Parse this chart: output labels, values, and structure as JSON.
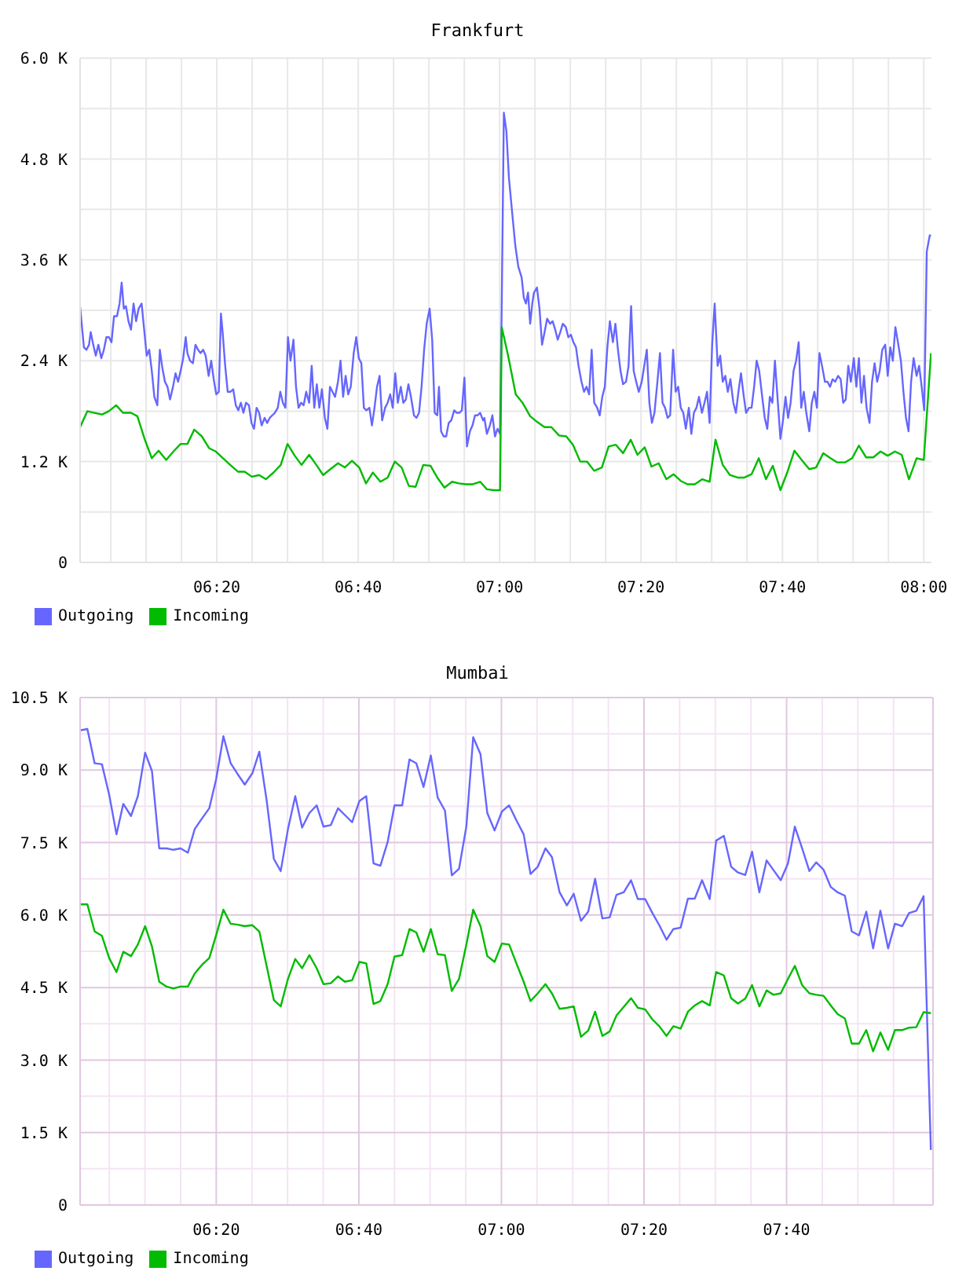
{
  "chart_data": [
    {
      "type": "line",
      "title": "Frankfurt",
      "series": [
        {
          "name": "Outgoing",
          "color": "#6666ff",
          "x": [
            6.011,
            6.02,
            6.026,
            6.032,
            6.036,
            6.042,
            6.048,
            6.054,
            6.061,
            6.067,
            6.073,
            6.079,
            6.085,
            6.091,
            6.098,
            6.104,
            6.109,
            6.114,
            6.119,
            6.125,
            6.131,
            6.137,
            6.143,
            6.149,
            6.156,
            6.162,
            6.168,
            6.174,
            6.18,
            6.186,
            6.193,
            6.199,
            6.205,
            6.211,
            6.217,
            6.223,
            6.23,
            6.236,
            6.242,
            6.248,
            6.254,
            6.26,
            6.264,
            6.27,
            6.277,
            6.283,
            6.289,
            6.295,
            6.301,
            6.307,
            6.314,
            6.32,
            6.326,
            6.332,
            6.338,
            6.343,
            6.347,
            6.353,
            6.359,
            6.365,
            6.372,
            6.378,
            6.384,
            6.39,
            6.396,
            6.402,
            6.409,
            6.415,
            6.421,
            6.427,
            6.433,
            6.439,
            6.446,
            6.452,
            6.458,
            6.464,
            6.47,
            6.477,
            6.483,
            6.489,
            6.495,
            6.501,
            6.507,
            6.514,
            6.52,
            6.526,
            6.532,
            6.538,
            6.544,
            6.551,
            6.557,
            6.563,
            6.569,
            6.575,
            6.581,
            6.588,
            6.594,
            6.6,
            6.606,
            6.612,
            6.619,
            6.625,
            6.631,
            6.637,
            6.643,
            6.649,
            6.656,
            6.662,
            6.668,
            6.674,
            6.68,
            6.686,
            6.693,
            6.699,
            6.705,
            6.711,
            6.717,
            6.723,
            6.73,
            6.736,
            6.742,
            6.748,
            6.754,
            6.76,
            6.767,
            6.773,
            6.779,
            6.785,
            6.791,
            6.798,
            6.804,
            6.81,
            6.816,
            6.822,
            6.828,
            6.835,
            6.841,
            6.847,
            6.853,
            6.857,
            6.862,
            6.868,
            6.874,
            6.88,
            6.886,
            6.893,
            6.899,
            6.905,
            6.911,
            6.917,
            6.923,
            6.93,
            6.936,
            6.942,
            6.948,
            6.954,
            6.961,
            6.964,
            6.97,
            6.977,
            6.983,
            6.989,
            6.995,
            7.001,
            7.005,
            7.01,
            7.016,
            7.022,
            7.03,
            7.037,
            7.044,
            7.052,
            7.057,
            7.062,
            7.067,
            7.072,
            7.077,
            7.081,
            7.088,
            7.094,
            7.1,
            7.106,
            7.112,
            7.119,
            7.125,
            7.131,
            7.137,
            7.143,
            7.149,
            7.156,
            7.162,
            7.168,
            7.174,
            7.18,
            7.186,
            7.193,
            7.199,
            7.205,
            7.211,
            7.217,
            7.223,
            7.23,
            7.236,
            7.242,
            7.248,
            7.254,
            7.26,
            7.267,
            7.273,
            7.279,
            7.285,
            7.291,
            7.298,
            7.304,
            7.31,
            7.316,
            7.322,
            7.328,
            7.335,
            7.341,
            7.347,
            7.353,
            7.359,
            7.365,
            7.372,
            7.378,
            7.384,
            7.39,
            7.396,
            7.402,
            7.409,
            7.415,
            7.421,
            7.427,
            7.433,
            7.439,
            7.446,
            7.452,
            7.458,
            7.464,
            7.47,
            7.477,
            7.483,
            7.489,
            7.495,
            7.501,
            7.507,
            7.514,
            7.52,
            7.526,
            7.532,
            7.538,
            7.544,
            7.551,
            7.557,
            7.563,
            7.569,
            7.575,
            7.581,
            7.588,
            7.594,
            7.6,
            7.606,
            7.612,
            7.619,
            7.625,
            7.631,
            7.637,
            7.643,
            7.649,
            7.656,
            7.662,
            7.668,
            7.674,
            7.68,
            7.686,
            7.693,
            7.699,
            7.705,
            7.711,
            7.717,
            7.723,
            7.73,
            7.736,
            7.742,
            7.748,
            7.754,
            7.76,
            7.767,
            7.773,
            7.779,
            7.785,
            7.791,
            7.798,
            7.804,
            7.81,
            7.816,
            7.822,
            7.828,
            7.835,
            7.841,
            7.847,
            7.853,
            7.859,
            7.865,
            7.872,
            7.878,
            7.884,
            7.89,
            7.896,
            7.902,
            7.909,
            7.915,
            7.921,
            7.927,
            7.933,
            7.939,
            7.946,
            7.952,
            7.958,
            7.964,
            7.97,
            7.976,
            7.983,
            7.989,
            7.995,
            8.001,
            8.007,
            8.014,
            8.017
          ],
          "values": [
            3040,
            2560,
            2530,
            2590,
            2740,
            2590,
            2460,
            2590,
            2430,
            2530,
            2680,
            2680,
            2620,
            2930,
            2930,
            3080,
            3330,
            3020,
            3050,
            2870,
            2770,
            3080,
            2870,
            3020,
            3080,
            2770,
            2460,
            2530,
            2280,
            1970,
            1870,
            2530,
            2310,
            2150,
            2090,
            1940,
            2090,
            2250,
            2150,
            2280,
            2430,
            2680,
            2490,
            2400,
            2370,
            2590,
            2530,
            2490,
            2530,
            2460,
            2220,
            2400,
            2180,
            2000,
            2030,
            2960,
            2740,
            2340,
            2030,
            2030,
            2060,
            1870,
            1810,
            1900,
            1780,
            1900,
            1870,
            1660,
            1590,
            1840,
            1780,
            1630,
            1720,
            1660,
            1720,
            1750,
            1780,
            1840,
            2030,
            1900,
            1840,
            2680,
            2400,
            2650,
            2090,
            1840,
            1900,
            1870,
            2030,
            1900,
            2340,
            1840,
            2120,
            1840,
            2060,
            1720,
            1590,
            2090,
            2030,
            1970,
            2150,
            2400,
            1970,
            2220,
            2000,
            2090,
            2490,
            2680,
            2430,
            2370,
            1840,
            1810,
            1840,
            1630,
            1840,
            2090,
            2220,
            1690,
            1840,
            1900,
            2000,
            1840,
            2250,
            1900,
            2090,
            1900,
            1940,
            2120,
            1970,
            1750,
            1720,
            1780,
            2090,
            2530,
            2840,
            3020,
            2650,
            1780,
            1750,
            2090,
            1560,
            1500,
            1500,
            1660,
            1690,
            1810,
            1780,
            1780,
            1810,
            2200,
            1380,
            1560,
            1630,
            1750,
            1750,
            1780,
            1690,
            1720,
            1530,
            1630,
            1750,
            1500,
            1590,
            1530,
            3080,
            5350,
            5130,
            4570,
            4140,
            3770,
            3520,
            3390,
            3150,
            3080,
            3210,
            2840,
            3080,
            3210,
            3270,
            3020,
            2590,
            2740,
            2900,
            2840,
            2870,
            2770,
            2650,
            2740,
            2840,
            2800,
            2680,
            2710,
            2620,
            2560,
            2340,
            2150,
            2030,
            2090,
            2000,
            2530,
            1900,
            1840,
            1750,
            1970,
            2090,
            2560,
            2870,
            2620,
            2840,
            2530,
            2280,
            2120,
            2150,
            2340,
            3050,
            2280,
            2150,
            2030,
            2150,
            2340,
            2530,
            1900,
            1660,
            1780,
            2150,
            2490,
            1900,
            1840,
            1720,
            1750,
            2530,
            2030,
            2090,
            1840,
            1780,
            1590,
            1840,
            1530,
            1780,
            1840,
            1970,
            1780,
            1900,
            2030,
            1660,
            2590,
            3080,
            2340,
            2460,
            2150,
            2220,
            2030,
            2180,
            1900,
            1780,
            2030,
            2250,
            2000,
            1780,
            1840,
            1840,
            2090,
            2400,
            2280,
            1970,
            1720,
            1590,
            1970,
            1900,
            2400,
            1900,
            1470,
            1690,
            1970,
            1720,
            1900,
            2280,
            2400,
            2620,
            1840,
            2030,
            1780,
            1560,
            1900,
            2030,
            1840,
            2490,
            2340,
            2150,
            2150,
            2090,
            2180,
            2150,
            2220,
            2180,
            1900,
            1940,
            2340,
            2150,
            2430,
            2090,
            2430,
            1900,
            2220,
            1840,
            1660,
            2150,
            2370,
            2150,
            2280,
            2530,
            2590,
            2220,
            2560,
            2400,
            2800,
            2620,
            2400,
            2030,
            1720,
            1560,
            2150,
            2430,
            2220,
            2340,
            2090,
            1810,
            3700,
            3890,
            3890
          ]
        },
        {
          "name": "Incoming",
          "color": "#00bb00",
          "x": [
            6.011,
            6.028,
            6.044,
            6.063,
            6.079,
            6.096,
            6.112,
            6.131,
            6.146,
            6.163,
            6.18,
            6.196,
            6.214,
            6.231,
            6.248,
            6.264,
            6.28,
            6.298,
            6.315,
            6.331,
            6.348,
            6.365,
            6.383,
            6.399,
            6.416,
            6.433,
            6.449,
            6.467,
            6.484,
            6.5,
            6.517,
            6.533,
            6.551,
            6.568,
            6.584,
            6.601,
            6.619,
            6.635,
            6.652,
            6.669,
            6.685,
            6.701,
            6.719,
            6.736,
            6.753,
            6.769,
            6.786,
            6.802,
            6.82,
            6.837,
            6.853,
            6.87,
            6.888,
            6.904,
            6.921,
            6.937,
            6.954,
            6.97,
            6.986,
            7.001,
            7.005,
            7.02,
            7.038,
            7.054,
            7.072,
            7.089,
            7.106,
            7.122,
            7.14,
            7.157,
            7.173,
            7.19,
            7.206,
            7.223,
            7.241,
            7.257,
            7.274,
            7.291,
            7.309,
            7.325,
            7.342,
            7.358,
            7.375,
            7.393,
            7.41,
            7.427,
            7.443,
            7.46,
            7.478,
            7.495,
            7.509,
            7.526,
            7.543,
            7.561,
            7.577,
            7.594,
            7.611,
            7.628,
            7.644,
            7.662,
            7.678,
            7.695,
            7.712,
            7.73,
            7.746,
            7.763,
            7.78,
            7.796,
            7.814,
            7.831,
            7.847,
            7.864,
            7.881,
            7.898,
            7.915,
            7.932,
            7.948,
            7.965,
            7.983,
            8.0,
            8.017
          ],
          "values": [
            1610,
            1800,
            1780,
            1760,
            1800,
            1870,
            1780,
            1780,
            1740,
            1470,
            1240,
            1330,
            1220,
            1320,
            1410,
            1410,
            1580,
            1500,
            1360,
            1320,
            1240,
            1160,
            1080,
            1080,
            1020,
            1040,
            990,
            1070,
            1160,
            1410,
            1270,
            1160,
            1280,
            1160,
            1040,
            1110,
            1180,
            1130,
            1210,
            1130,
            940,
            1070,
            960,
            1010,
            1200,
            1130,
            910,
            900,
            1160,
            1150,
            1010,
            890,
            960,
            940,
            930,
            930,
            960,
            870,
            860,
            860,
            2800,
            2460,
            2000,
            1900,
            1740,
            1670,
            1610,
            1610,
            1510,
            1500,
            1400,
            1200,
            1200,
            1090,
            1130,
            1380,
            1400,
            1300,
            1460,
            1280,
            1370,
            1140,
            1180,
            990,
            1050,
            970,
            930,
            930,
            990,
            960,
            1460,
            1160,
            1040,
            1010,
            1010,
            1050,
            1240,
            990,
            1150,
            860,
            1070,
            1330,
            1220,
            1110,
            1130,
            1300,
            1240,
            1190,
            1190,
            1240,
            1390,
            1250,
            1250,
            1320,
            1270,
            1320,
            1280,
            990,
            1240,
            1220,
            2490
          ]
        }
      ],
      "xlim": [
        6.011,
        8.018
      ],
      "xticks": [
        {
          "value": 6.0833,
          "label": null
        },
        {
          "value": 6.1667,
          "label": null
        },
        {
          "value": 6.25,
          "label": null
        },
        {
          "value": 6.3333,
          "label": "06:20"
        },
        {
          "value": 6.4167,
          "label": null
        },
        {
          "value": 6.5,
          "label": null
        },
        {
          "value": 6.5833,
          "label": null
        },
        {
          "value": 6.6667,
          "label": "06:40"
        },
        {
          "value": 6.75,
          "label": null
        },
        {
          "value": 6.8333,
          "label": null
        },
        {
          "value": 6.9167,
          "label": null
        },
        {
          "value": 7,
          "label": "07:00"
        },
        {
          "value": 7.0833,
          "label": null
        },
        {
          "value": 7.1667,
          "label": null
        },
        {
          "value": 7.25,
          "label": null
        },
        {
          "value": 7.3333,
          "label": "07:20"
        },
        {
          "value": 7.4167,
          "label": null
        },
        {
          "value": 7.5,
          "label": null
        },
        {
          "value": 7.5833,
          "label": null
        },
        {
          "value": 7.6667,
          "label": "07:40"
        },
        {
          "value": 7.75,
          "label": null
        },
        {
          "value": 7.8333,
          "label": null
        },
        {
          "value": 7.9167,
          "label": null
        },
        {
          "value": 8,
          "label": "08:00"
        }
      ],
      "ylim": [
        0,
        6000
      ],
      "yticks": [
        0,
        {
          "value": 600,
          "label": null
        },
        {
          "value": 1200,
          "label": "1.2 K"
        },
        {
          "value": 1800,
          "label": null
        },
        {
          "value": 2400,
          "label": "2.4 K"
        },
        {
          "value": 3000,
          "label": null
        },
        {
          "value": 3600,
          "label": "3.6 K"
        },
        {
          "value": 4200,
          "label": null
        },
        {
          "value": 4800,
          "label": "4.8 K"
        },
        {
          "value": 5400,
          "label": null
        },
        {
          "value": 6000,
          "label": "6.0 K"
        }
      ],
      "grid": true,
      "legend": "bottom left"
    },
    {
      "type": "line",
      "title": "Mumbai",
      "x": [
        6.015,
        6.032,
        6.049,
        6.066,
        6.083,
        6.1,
        6.116,
        6.134,
        6.15,
        6.167,
        6.183,
        6.2,
        6.217,
        6.233,
        6.25,
        6.267,
        6.283,
        6.3,
        6.317,
        6.333,
        6.35,
        6.367,
        6.383,
        6.4,
        6.418,
        6.434,
        6.451,
        6.468,
        6.484,
        6.501,
        6.518,
        6.534,
        6.551,
        6.568,
        6.584,
        6.601,
        6.618,
        6.634,
        6.651,
        6.668,
        6.684,
        6.701,
        6.717,
        6.734,
        6.75,
        6.768,
        6.785,
        6.801,
        6.818,
        6.835,
        6.851,
        6.868,
        6.884,
        6.901,
        6.918,
        6.934,
        6.951,
        6.967,
        6.984,
        7.001,
        7.018,
        7.035,
        7.052,
        7.068,
        7.085,
        7.103,
        7.118,
        7.136,
        7.153,
        7.169,
        7.186,
        7.203,
        7.219,
        7.236,
        7.253,
        7.269,
        7.286,
        7.303,
        7.319,
        7.336,
        7.353,
        7.369,
        7.386,
        7.402,
        7.419,
        7.436,
        7.452,
        7.469,
        7.487,
        7.502,
        7.52,
        7.537,
        7.553,
        7.57,
        7.586,
        7.603,
        7.62,
        7.636,
        7.653,
        7.67,
        7.686,
        7.703,
        7.72,
        7.736,
        7.753,
        7.77,
        7.786,
        7.803,
        7.819,
        7.836,
        7.853,
        7.869,
        7.886,
        7.904,
        7.92,
        7.937,
        7.953,
        7.97,
        7.987,
        8.004
      ],
      "series": [
        {
          "name": "Outgoing",
          "color": "#6666ff",
          "values": [
            9820,
            9850,
            9140,
            9120,
            8490,
            7670,
            8300,
            8050,
            8460,
            9360,
            8980,
            7380,
            7380,
            7350,
            7380,
            7290,
            7780,
            8000,
            8210,
            8810,
            9700,
            9140,
            8920,
            8700,
            8940,
            9380,
            8380,
            7160,
            6910,
            7780,
            8460,
            7810,
            8110,
            8270,
            7830,
            7860,
            8210,
            8070,
            7920,
            8360,
            8460,
            7070,
            7020,
            7510,
            8270,
            8270,
            9220,
            9140,
            8650,
            9300,
            8430,
            8160,
            6820,
            6960,
            7830,
            9680,
            9330,
            8110,
            7750,
            8140,
            8270,
            7960,
            7670,
            6850,
            7000,
            7380,
            7200,
            6470,
            6200,
            6440,
            5880,
            6070,
            6750,
            5930,
            5950,
            6420,
            6470,
            6720,
            6330,
            6330,
            6040,
            5790,
            5490,
            5710,
            5740,
            6340,
            6340,
            6720,
            6330,
            7540,
            7640,
            7000,
            6880,
            6830,
            7310,
            6470,
            7130,
            6930,
            6720,
            7070,
            7830,
            7380,
            6910,
            7090,
            6940,
            6580,
            6470,
            6400,
            5660,
            5580,
            6070,
            5310,
            6090,
            5310,
            5820,
            5770,
            6040,
            6090,
            6390,
            1140
          ]
        },
        {
          "name": "Incoming",
          "color": "#00bb00",
          "values": [
            6220,
            6220,
            5660,
            5570,
            5110,
            4820,
            5240,
            5150,
            5390,
            5770,
            5350,
            4620,
            4520,
            4480,
            4520,
            4520,
            4790,
            4970,
            5110,
            5580,
            6110,
            5820,
            5800,
            5770,
            5790,
            5660,
            4950,
            4240,
            4110,
            4680,
            5090,
            4900,
            5170,
            4900,
            4570,
            4590,
            4730,
            4620,
            4650,
            5030,
            5000,
            4160,
            4220,
            4570,
            5140,
            5170,
            5710,
            5640,
            5240,
            5710,
            5190,
            5170,
            4430,
            4680,
            5390,
            6110,
            5770,
            5150,
            5030,
            5410,
            5390,
            5000,
            4620,
            4220,
            4380,
            4570,
            4380,
            4060,
            4080,
            4110,
            3480,
            3610,
            4000,
            3500,
            3590,
            3920,
            4100,
            4280,
            4080,
            4050,
            3840,
            3700,
            3500,
            3700,
            3650,
            4000,
            4130,
            4220,
            4130,
            4820,
            4750,
            4280,
            4170,
            4270,
            4550,
            4110,
            4440,
            4350,
            4380,
            4680,
            4950,
            4550,
            4380,
            4350,
            4330,
            4130,
            3950,
            3860,
            3340,
            3340,
            3620,
            3180,
            3570,
            3210,
            3620,
            3620,
            3670,
            3680,
            3990,
            3970
          ]
        }
      ],
      "xlim": [
        6.015,
        8.009
      ],
      "xticks": [
        {
          "value": 6.0833,
          "label": null
        },
        {
          "value": 6.1667,
          "label": null
        },
        {
          "value": 6.25,
          "label": null
        },
        {
          "value": 6.3333,
          "label": "06:20"
        },
        {
          "value": 6.4167,
          "label": null
        },
        {
          "value": 6.5,
          "label": null
        },
        {
          "value": 6.5833,
          "label": null
        },
        {
          "value": 6.6667,
          "label": "06:40"
        },
        {
          "value": 6.75,
          "label": null
        },
        {
          "value": 6.8333,
          "label": null
        },
        {
          "value": 6.9167,
          "label": null
        },
        {
          "value": 7,
          "label": "07:00"
        },
        {
          "value": 7.0833,
          "label": null
        },
        {
          "value": 7.1667,
          "label": null
        },
        {
          "value": 7.25,
          "label": null
        },
        {
          "value": 7.3333,
          "label": "07:20"
        },
        {
          "value": 7.4167,
          "label": null
        },
        {
          "value": 7.5,
          "label": null
        },
        {
          "value": 7.5833,
          "label": null
        },
        {
          "value": 7.6667,
          "label": "07:40"
        },
        {
          "value": 7.75,
          "label": null
        },
        {
          "value": 7.8333,
          "label": null
        },
        {
          "value": 7.9167,
          "label": null
        }
      ],
      "ylim": [
        0,
        10500
      ],
      "yticks": [
        0,
        {
          "value": 750,
          "label": null
        },
        {
          "value": 1500,
          "label": "1.5 K"
        },
        {
          "value": 2250,
          "label": null
        },
        {
          "value": 3000,
          "label": "3.0 K"
        },
        {
          "value": 3750,
          "label": null
        },
        {
          "value": 4500,
          "label": "4.5 K"
        },
        {
          "value": 5250,
          "label": null
        },
        {
          "value": 6000,
          "label": "6.0 K"
        },
        {
          "value": 6750,
          "label": null
        },
        {
          "value": 7500,
          "label": "7.5 K"
        },
        {
          "value": 8250,
          "label": null
        },
        {
          "value": 9000,
          "label": "9.0 K"
        },
        {
          "value": 9750,
          "label": null
        },
        {
          "value": 10500,
          "label": "10.5 K"
        }
      ],
      "grid": true,
      "legend": "bottom left"
    }
  ]
}
